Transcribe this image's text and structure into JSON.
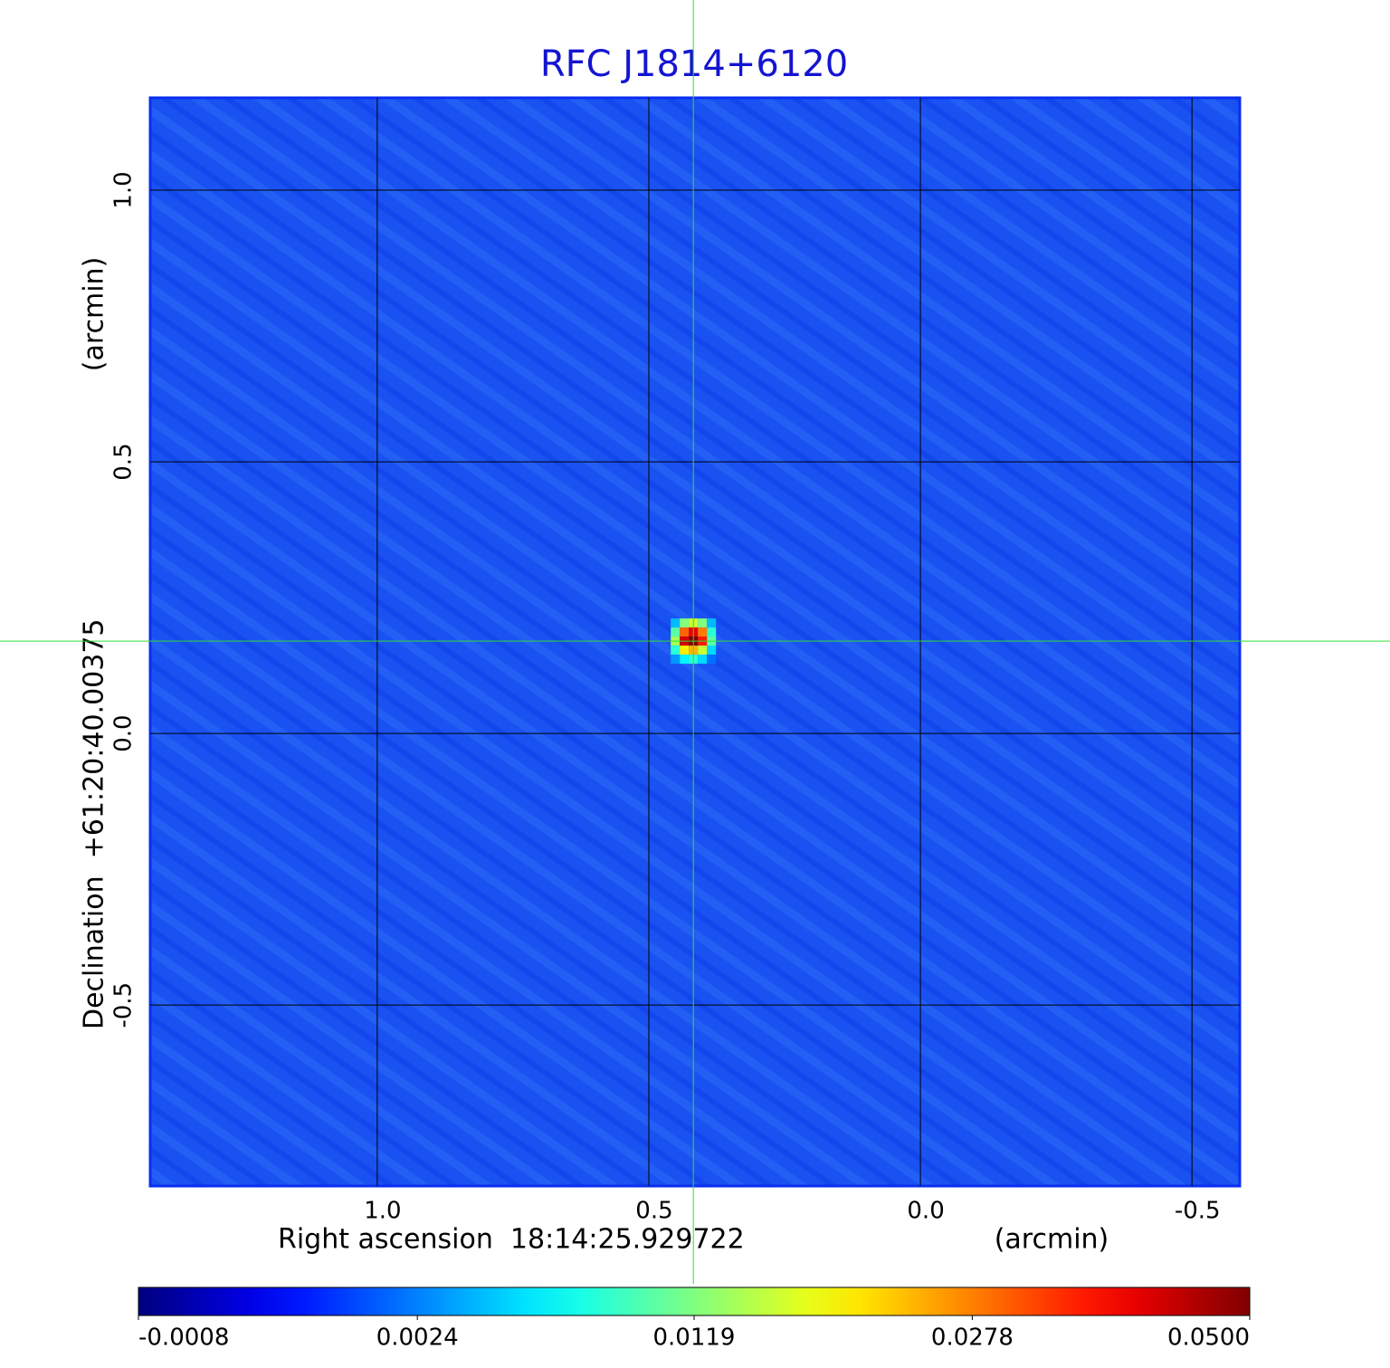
{
  "chart_data": {
    "type": "image",
    "title": "RFC J1814+6120",
    "x_label": "Right ascension  18:14:25.929722",
    "x_unit_label": "(arcmin)",
    "y_label": "Declination  +61:20:40.00375",
    "y_unit_label": "(arcmin)",
    "xlim": [
      1.418,
      -0.588
    ],
    "ylim": [
      -0.833,
      1.17
    ],
    "xticks": [
      {
        "value": 1.0,
        "label": "1.0"
      },
      0.5,
      {
        "value": 0.0,
        "label": "0.0"
      },
      -0.5
    ],
    "yticks": [
      {
        "value": 1.0,
        "label": "1.0"
      },
      0.5,
      {
        "value": 0.0,
        "label": "0.0"
      },
      -0.5
    ],
    "grid": true,
    "colormap": "jet",
    "source": {
      "x": 0.418,
      "y": 0.17,
      "pixels": [
        [
          0.004,
          0.012,
          0.016,
          0.012,
          0.004
        ],
        [
          0.01,
          0.03,
          0.04,
          0.028,
          0.008
        ],
        [
          0.014,
          0.042,
          0.05,
          0.036,
          0.01
        ],
        [
          0.008,
          0.02,
          0.024,
          0.016,
          0.005
        ],
        [
          0.003,
          0.006,
          0.008,
          0.005,
          0.002
        ]
      ]
    },
    "colorbar": {
      "lim": [
        -0.0008,
        0.05
      ],
      "scale": "sqrt",
      "ticks": [
        -0.0008,
        0.0024,
        0.0119,
        0.0278,
        {
          "value": 0.05,
          "label": "0.0500"
        }
      ]
    }
  }
}
